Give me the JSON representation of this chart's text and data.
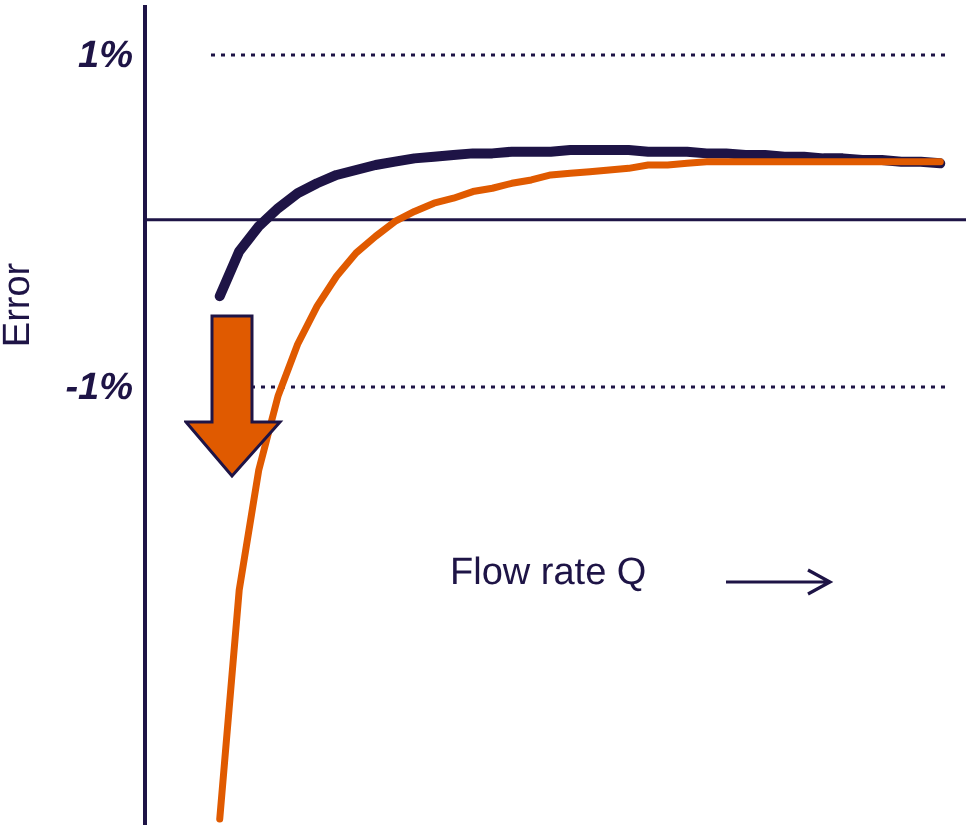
{
  "chart_data": {
    "type": "line",
    "ylabel": "Error",
    "annotations": [
      "Flow rate Q"
    ],
    "categories": [
      null,
      null,
      null,
      null,
      null,
      null,
      null,
      null,
      null,
      null,
      null,
      null,
      null,
      null,
      null,
      null,
      null,
      null,
      null,
      null,
      null,
      null,
      null,
      null,
      null,
      null,
      null,
      null,
      null,
      null,
      null,
      null,
      null,
      null,
      null,
      null,
      null,
      null
    ],
    "series": [
      {
        "color": "#1e1446",
        "values": [
          -0.46,
          -0.19,
          -0.04,
          0.07,
          0.16,
          0.22,
          0.27,
          0.3,
          0.33,
          0.35,
          0.37,
          0.38,
          0.39,
          0.4,
          0.4,
          0.41,
          0.41,
          0.41,
          0.42,
          0.42,
          0.42,
          0.42,
          0.41,
          0.41,
          0.41,
          0.4,
          0.4,
          0.39,
          0.39,
          0.38,
          0.38,
          0.37,
          0.37,
          0.36,
          0.36,
          0.35,
          0.35,
          0.34
        ]
      },
      {
        "color": "#e05a00",
        "values": [
          -3.61,
          -2.23,
          -1.51,
          -1.06,
          -0.75,
          -0.52,
          -0.34,
          -0.2,
          -0.1,
          -0.01,
          0.05,
          0.1,
          0.13,
          0.17,
          0.19,
          0.22,
          0.24,
          0.27,
          0.28,
          0.29,
          0.3,
          0.31,
          0.33,
          0.33,
          0.34,
          0.35,
          0.35,
          0.35,
          0.35,
          0.35,
          0.35,
          0.35,
          0.35,
          0.35,
          0.35,
          0.35,
          0.35,
          0.35
        ]
      }
    ],
    "ylim": [
      -3.64,
      1.3
    ],
    "yticks": [
      {
        "value": 1,
        "label": "1%"
      },
      {
        "value": -1,
        "label": "-1%"
      }
    ],
    "grid": "y",
    "tick_labels": "y",
    "marker": "none",
    "line_style": "solid",
    "ref_lines": [
      {
        "axis": "y",
        "value": 0,
        "color": "#1e1446"
      }
    ]
  }
}
